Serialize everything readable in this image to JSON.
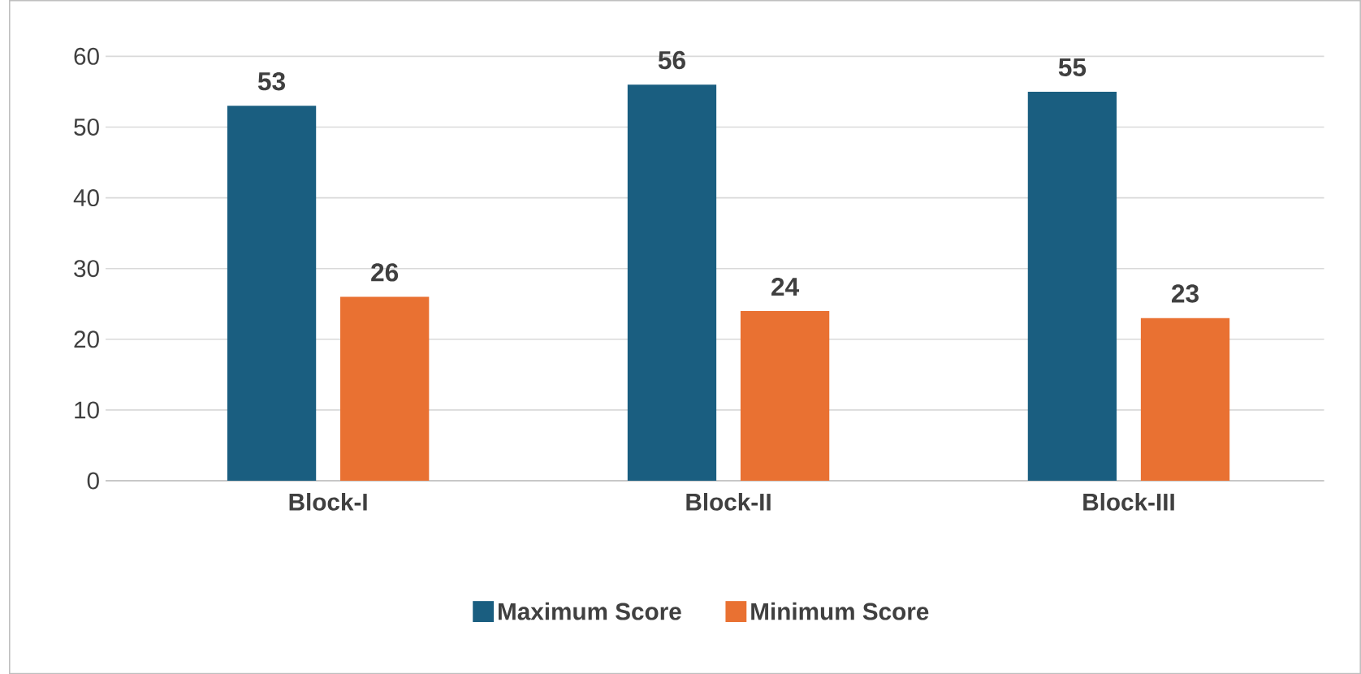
{
  "chart_data": {
    "type": "bar",
    "categories": [
      "Block-I",
      "Block-II",
      "Block-III"
    ],
    "series": [
      {
        "name": "Maximum Score",
        "color": "#1a5e80",
        "values": [
          53,
          56,
          55
        ]
      },
      {
        "name": "Minimum Score",
        "color": "#e97132",
        "values": [
          26,
          24,
          23
        ]
      }
    ],
    "ylim": [
      0,
      60
    ],
    "yticks": [
      0,
      10,
      20,
      30,
      40,
      50,
      60
    ],
    "grid": "y",
    "legend": "bottom",
    "data_labels": true
  }
}
